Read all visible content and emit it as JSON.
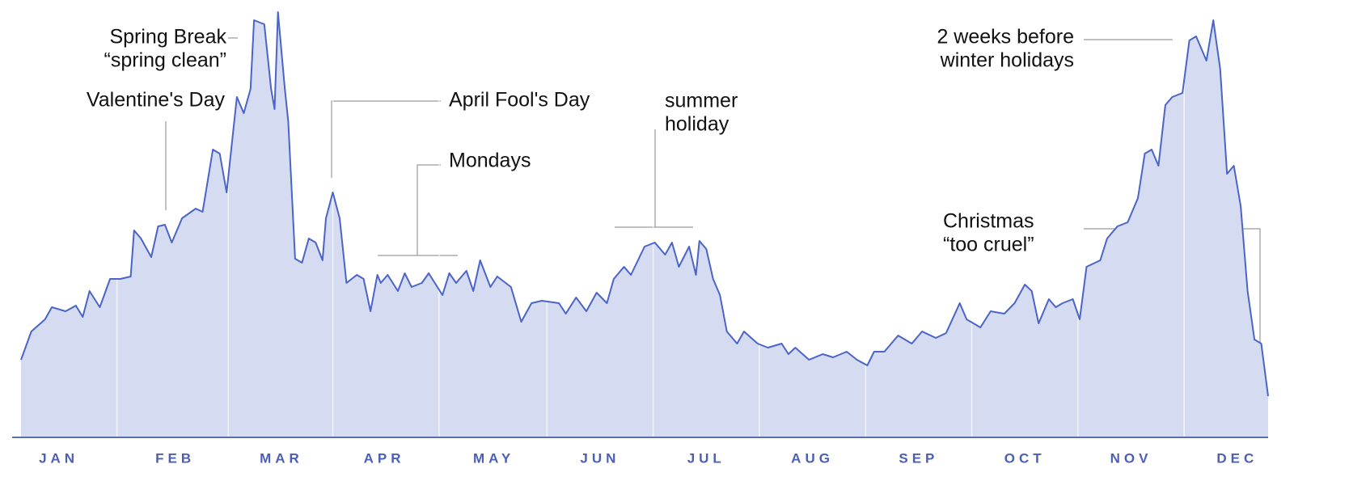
{
  "chart_data": {
    "type": "area",
    "x": [
      1,
      4,
      8,
      10,
      14,
      17,
      19,
      21,
      24,
      27,
      30,
      33,
      34,
      36,
      39,
      41,
      43,
      45,
      48,
      52,
      54,
      57,
      59,
      61,
      64,
      66,
      68,
      69,
      72,
      74,
      75,
      76,
      78,
      79,
      81,
      83,
      85,
      87,
      89,
      90,
      92,
      94,
      96,
      99,
      101,
      103,
      105,
      106,
      108,
      111,
      113,
      115,
      118,
      120,
      124,
      126,
      128,
      131,
      133,
      135,
      138,
      140,
      144,
      147,
      150,
      153,
      158,
      160,
      163,
      166,
      169,
      172,
      174,
      177,
      179,
      183,
      186,
      189,
      191,
      193,
      196,
      198,
      199,
      201,
      203,
      205,
      207,
      210,
      212,
      216,
      219,
      223,
      225,
      227,
      231,
      235,
      238,
      242,
      245,
      248,
      250,
      253,
      257,
      261,
      264,
      268,
      271,
      275,
      277,
      281,
      284,
      288,
      291,
      294,
      296,
      298,
      301,
      303,
      305,
      308,
      310,
      312,
      316,
      318,
      321,
      324,
      327,
      329,
      331,
      333,
      335,
      337,
      340,
      342,
      344,
      347,
      349,
      351,
      353,
      355,
      357,
      359,
      361,
      363,
      365
    ],
    "values": [
      19.2,
      26.2,
      29.2,
      32.2,
      31.2,
      32.6,
      29.8,
      36.2,
      32.2,
      39.2,
      39.2,
      39.8,
      51.2,
      49.2,
      44.6,
      52.2,
      52.6,
      48.2,
      54.2,
      56.6,
      55.8,
      71.2,
      70.2,
      60.6,
      84.2,
      80.2,
      86.2,
      103.2,
      102.2,
      86.2,
      81.2,
      105.2,
      86.2,
      78.2,
      44.2,
      43.2,
      49.2,
      48.2,
      43.8,
      54.2,
      60.6,
      54.2,
      38.2,
      40.2,
      39.2,
      31.2,
      40.2,
      38.2,
      40.2,
      36.2,
      40.6,
      37.2,
      38.2,
      40.6,
      35.2,
      40.6,
      38.2,
      41.2,
      36.2,
      43.8,
      37.2,
      39.8,
      37.2,
      28.6,
      33.2,
      33.8,
      33.2,
      30.6,
      34.6,
      31.2,
      35.8,
      33.2,
      39.2,
      42.2,
      40.2,
      47.2,
      48.2,
      45.2,
      48.2,
      42.2,
      47.2,
      40.2,
      48.6,
      46.6,
      39.2,
      35.2,
      26.2,
      23.2,
      26.2,
      23.2,
      22.2,
      23.2,
      20.6,
      22.2,
      19.2,
      20.6,
      19.8,
      21.2,
      19.2,
      17.8,
      21.2,
      21.2,
      25.2,
      23.2,
      26.2,
      24.6,
      25.8,
      33.2,
      29.2,
      27.2,
      31.2,
      30.6,
      33.2,
      37.8,
      36.2,
      28.2,
      34.2,
      32.2,
      33.2,
      34.2,
      29.2,
      42.2,
      43.8,
      49.2,
      52.2,
      53.2,
      59.2,
      70.2,
      71.2,
      67.2,
      82.2,
      84.2,
      85.2,
      98.2,
      99.2,
      93.2,
      103.2,
      91.2,
      65.2,
      67.2,
      57.2,
      36.2,
      24.2,
      23.2,
      10.2
    ],
    "color": "#4a64c8",
    "fill": "#d5dbf1",
    "xlim": [
      1,
      365
    ],
    "xticks": [
      {
        "value": 12,
        "label": "JAN"
      },
      {
        "value": 46,
        "label": "FEB"
      },
      {
        "value": 77,
        "label": "MAR"
      },
      {
        "value": 107,
        "label": "APR"
      },
      {
        "value": 139,
        "label": "MAY"
      },
      {
        "value": 170,
        "label": "JUN"
      },
      {
        "value": 201,
        "label": "JUL"
      },
      {
        "value": 232,
        "label": "AUG"
      },
      {
        "value": 263,
        "label": "SEP"
      },
      {
        "value": 294,
        "label": "OCT"
      },
      {
        "value": 325,
        "label": "NOV"
      },
      {
        "value": 356,
        "label": "DEC"
      }
    ],
    "ylim": [
      0,
      106
    ],
    "grid": true,
    "annotations": [
      {
        "lines": [
          "Spring Break",
          "“spring clean”"
        ]
      },
      {
        "lines": [
          "Valentine's Day"
        ]
      },
      {
        "lines": [
          "April Fool's Day"
        ]
      },
      {
        "lines": [
          "Mondays"
        ]
      },
      {
        "lines": [
          "summer",
          "holiday"
        ]
      },
      {
        "lines": [
          "2 weeks before",
          "winter holidays"
        ]
      },
      {
        "lines": [
          "Christmas",
          "“too cruel”"
        ]
      }
    ]
  }
}
